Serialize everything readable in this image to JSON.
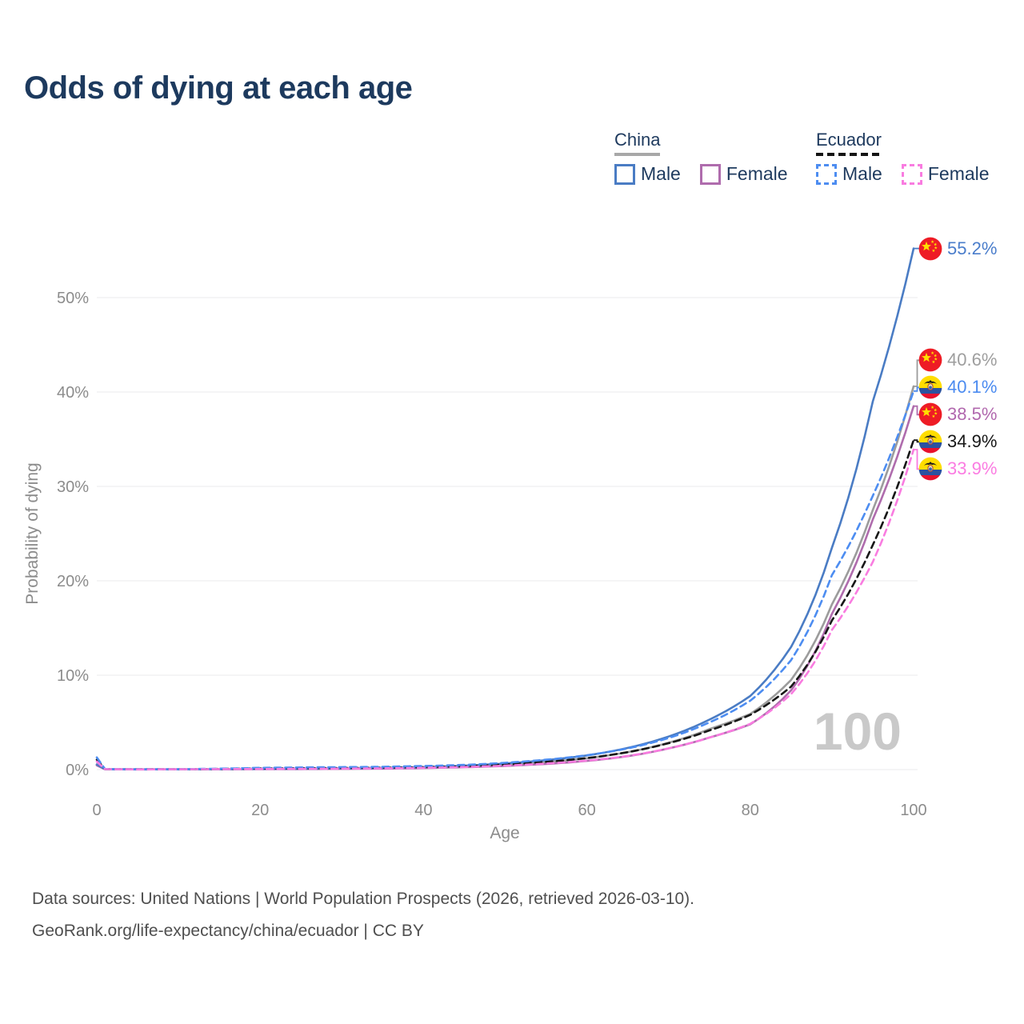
{
  "title": "Odds of dying at each age",
  "watermark_age": "100",
  "legend": {
    "groups": [
      {
        "label": "China",
        "line_style": "solid",
        "underline_color": "#a8a8a8",
        "items": [
          {
            "label": "Male",
            "color": "#4a7cc4"
          },
          {
            "label": "Female",
            "color": "#af6cad"
          }
        ]
      },
      {
        "label": "Ecuador",
        "line_style": "dashed",
        "underline_color": "#141414",
        "items": [
          {
            "label": "Male",
            "color": "#4d8df1"
          },
          {
            "label": "Female",
            "color": "#f97ce0"
          }
        ]
      }
    ]
  },
  "footer": {
    "line1": "Data sources: United Nations | World Population Prospects (2026, retrieved 2026-03-10).",
    "line2": "GeoRank.org/life-expectancy/china/ecuador | CC BY"
  },
  "chart_data": {
    "type": "line",
    "title": "Odds of dying at each age",
    "xlabel": "Age",
    "ylabel": "Probability of dying",
    "xlim": [
      0,
      100
    ],
    "ylim_pct": [
      0,
      57
    ],
    "grid": "horizontal",
    "x_ticks": [
      "0",
      "20",
      "40",
      "60",
      "80",
      "100"
    ],
    "y_ticks": [
      "0%",
      "10%",
      "20%",
      "30%",
      "40%",
      "50%"
    ],
    "x": [
      0,
      1,
      5,
      10,
      15,
      20,
      25,
      30,
      35,
      40,
      45,
      50,
      55,
      60,
      65,
      70,
      75,
      80,
      85,
      90,
      95,
      100
    ],
    "series": [
      {
        "name": "China Total",
        "country": "China",
        "flag": "china-flag-icon",
        "dash": "solid",
        "color": "#9c9c9c",
        "label_color": "#9e9e9e",
        "end_label": "40.6%",
        "values": [
          0.5,
          0.04,
          0.022,
          0.027,
          0.042,
          0.06,
          0.075,
          0.1,
          0.14,
          0.21,
          0.33,
          0.52,
          0.8,
          1.2,
          1.85,
          2.85,
          4.3,
          5.9,
          9.5,
          17.5,
          27.5,
          40.6
        ]
      },
      {
        "name": "China Female",
        "country": "China",
        "flag": "china-flag-icon",
        "dash": "solid",
        "color": "#af6cad",
        "label_color": "#b168ae",
        "end_label": "38.5%",
        "values": [
          0.45,
          0.035,
          0.02,
          0.024,
          0.035,
          0.045,
          0.055,
          0.075,
          0.105,
          0.16,
          0.25,
          0.39,
          0.6,
          0.92,
          1.42,
          2.25,
          3.4,
          4.8,
          8.4,
          16.5,
          26.5,
          38.5
        ]
      },
      {
        "name": "China Male",
        "country": "China",
        "flag": "china-flag-icon",
        "dash": "solid",
        "color": "#4a7cc4",
        "label_color": "#4a7dcb",
        "end_label": "55.2%",
        "values": [
          0.55,
          0.045,
          0.025,
          0.03,
          0.05,
          0.075,
          0.095,
          0.12,
          0.17,
          0.26,
          0.41,
          0.65,
          1.0,
          1.5,
          2.3,
          3.5,
          5.3,
          7.8,
          13.0,
          23.5,
          39.0,
          55.2
        ]
      },
      {
        "name": "Ecuador Total",
        "country": "Ecuador",
        "flag": "ecuador-flag-icon",
        "dash": "dashed",
        "color": "#171717",
        "label_color": "#171717",
        "end_label": "34.9%",
        "values": [
          1.05,
          0.05,
          0.03,
          0.038,
          0.07,
          0.12,
          0.15,
          0.17,
          0.2,
          0.26,
          0.36,
          0.54,
          0.82,
          1.22,
          1.85,
          2.8,
          4.15,
          5.8,
          8.8,
          15.8,
          23.8,
          34.9
        ]
      },
      {
        "name": "Ecuador Male",
        "country": "Ecuador",
        "flag": "ecuador-flag-icon",
        "dash": "dashed",
        "color": "#4d8df1",
        "label_color": "#4b8bf0",
        "end_label": "40.1%",
        "values": [
          1.3,
          0.06,
          0.035,
          0.045,
          0.1,
          0.19,
          0.23,
          0.26,
          0.3,
          0.38,
          0.5,
          0.72,
          1.05,
          1.52,
          2.25,
          3.35,
          5.0,
          7.3,
          11.6,
          20.6,
          29.0,
          40.1
        ]
      },
      {
        "name": "Ecuador Female",
        "country": "Ecuador",
        "flag": "ecuador-flag-icon",
        "dash": "dashed",
        "color": "#f97ce0",
        "label_color": "#fb7ce2",
        "end_label": "33.9%",
        "values": [
          0.85,
          0.045,
          0.027,
          0.032,
          0.05,
          0.065,
          0.08,
          0.1,
          0.135,
          0.185,
          0.27,
          0.42,
          0.64,
          0.95,
          1.45,
          2.25,
          3.4,
          4.85,
          8.0,
          14.8,
          22.0,
          33.9
        ]
      }
    ]
  }
}
